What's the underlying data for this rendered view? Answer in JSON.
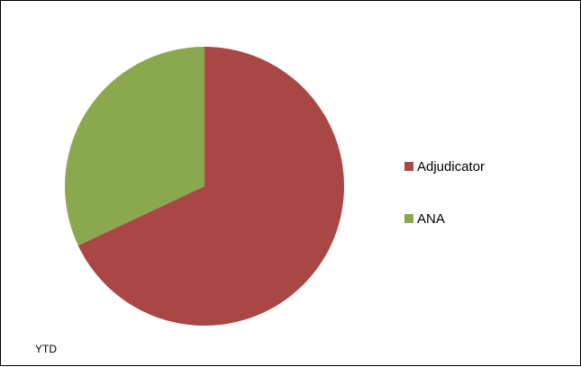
{
  "chart_data": {
    "type": "pie",
    "title": "",
    "series": [
      {
        "name": "Adjudicator",
        "value": 68,
        "color": "#a94744"
      },
      {
        "name": "ANA",
        "value": 32,
        "color": "#8aa84e"
      }
    ],
    "start_angle_deg": 0,
    "direction": "clockwise",
    "legend_position": "right"
  },
  "footer": {
    "label": "YTD"
  }
}
